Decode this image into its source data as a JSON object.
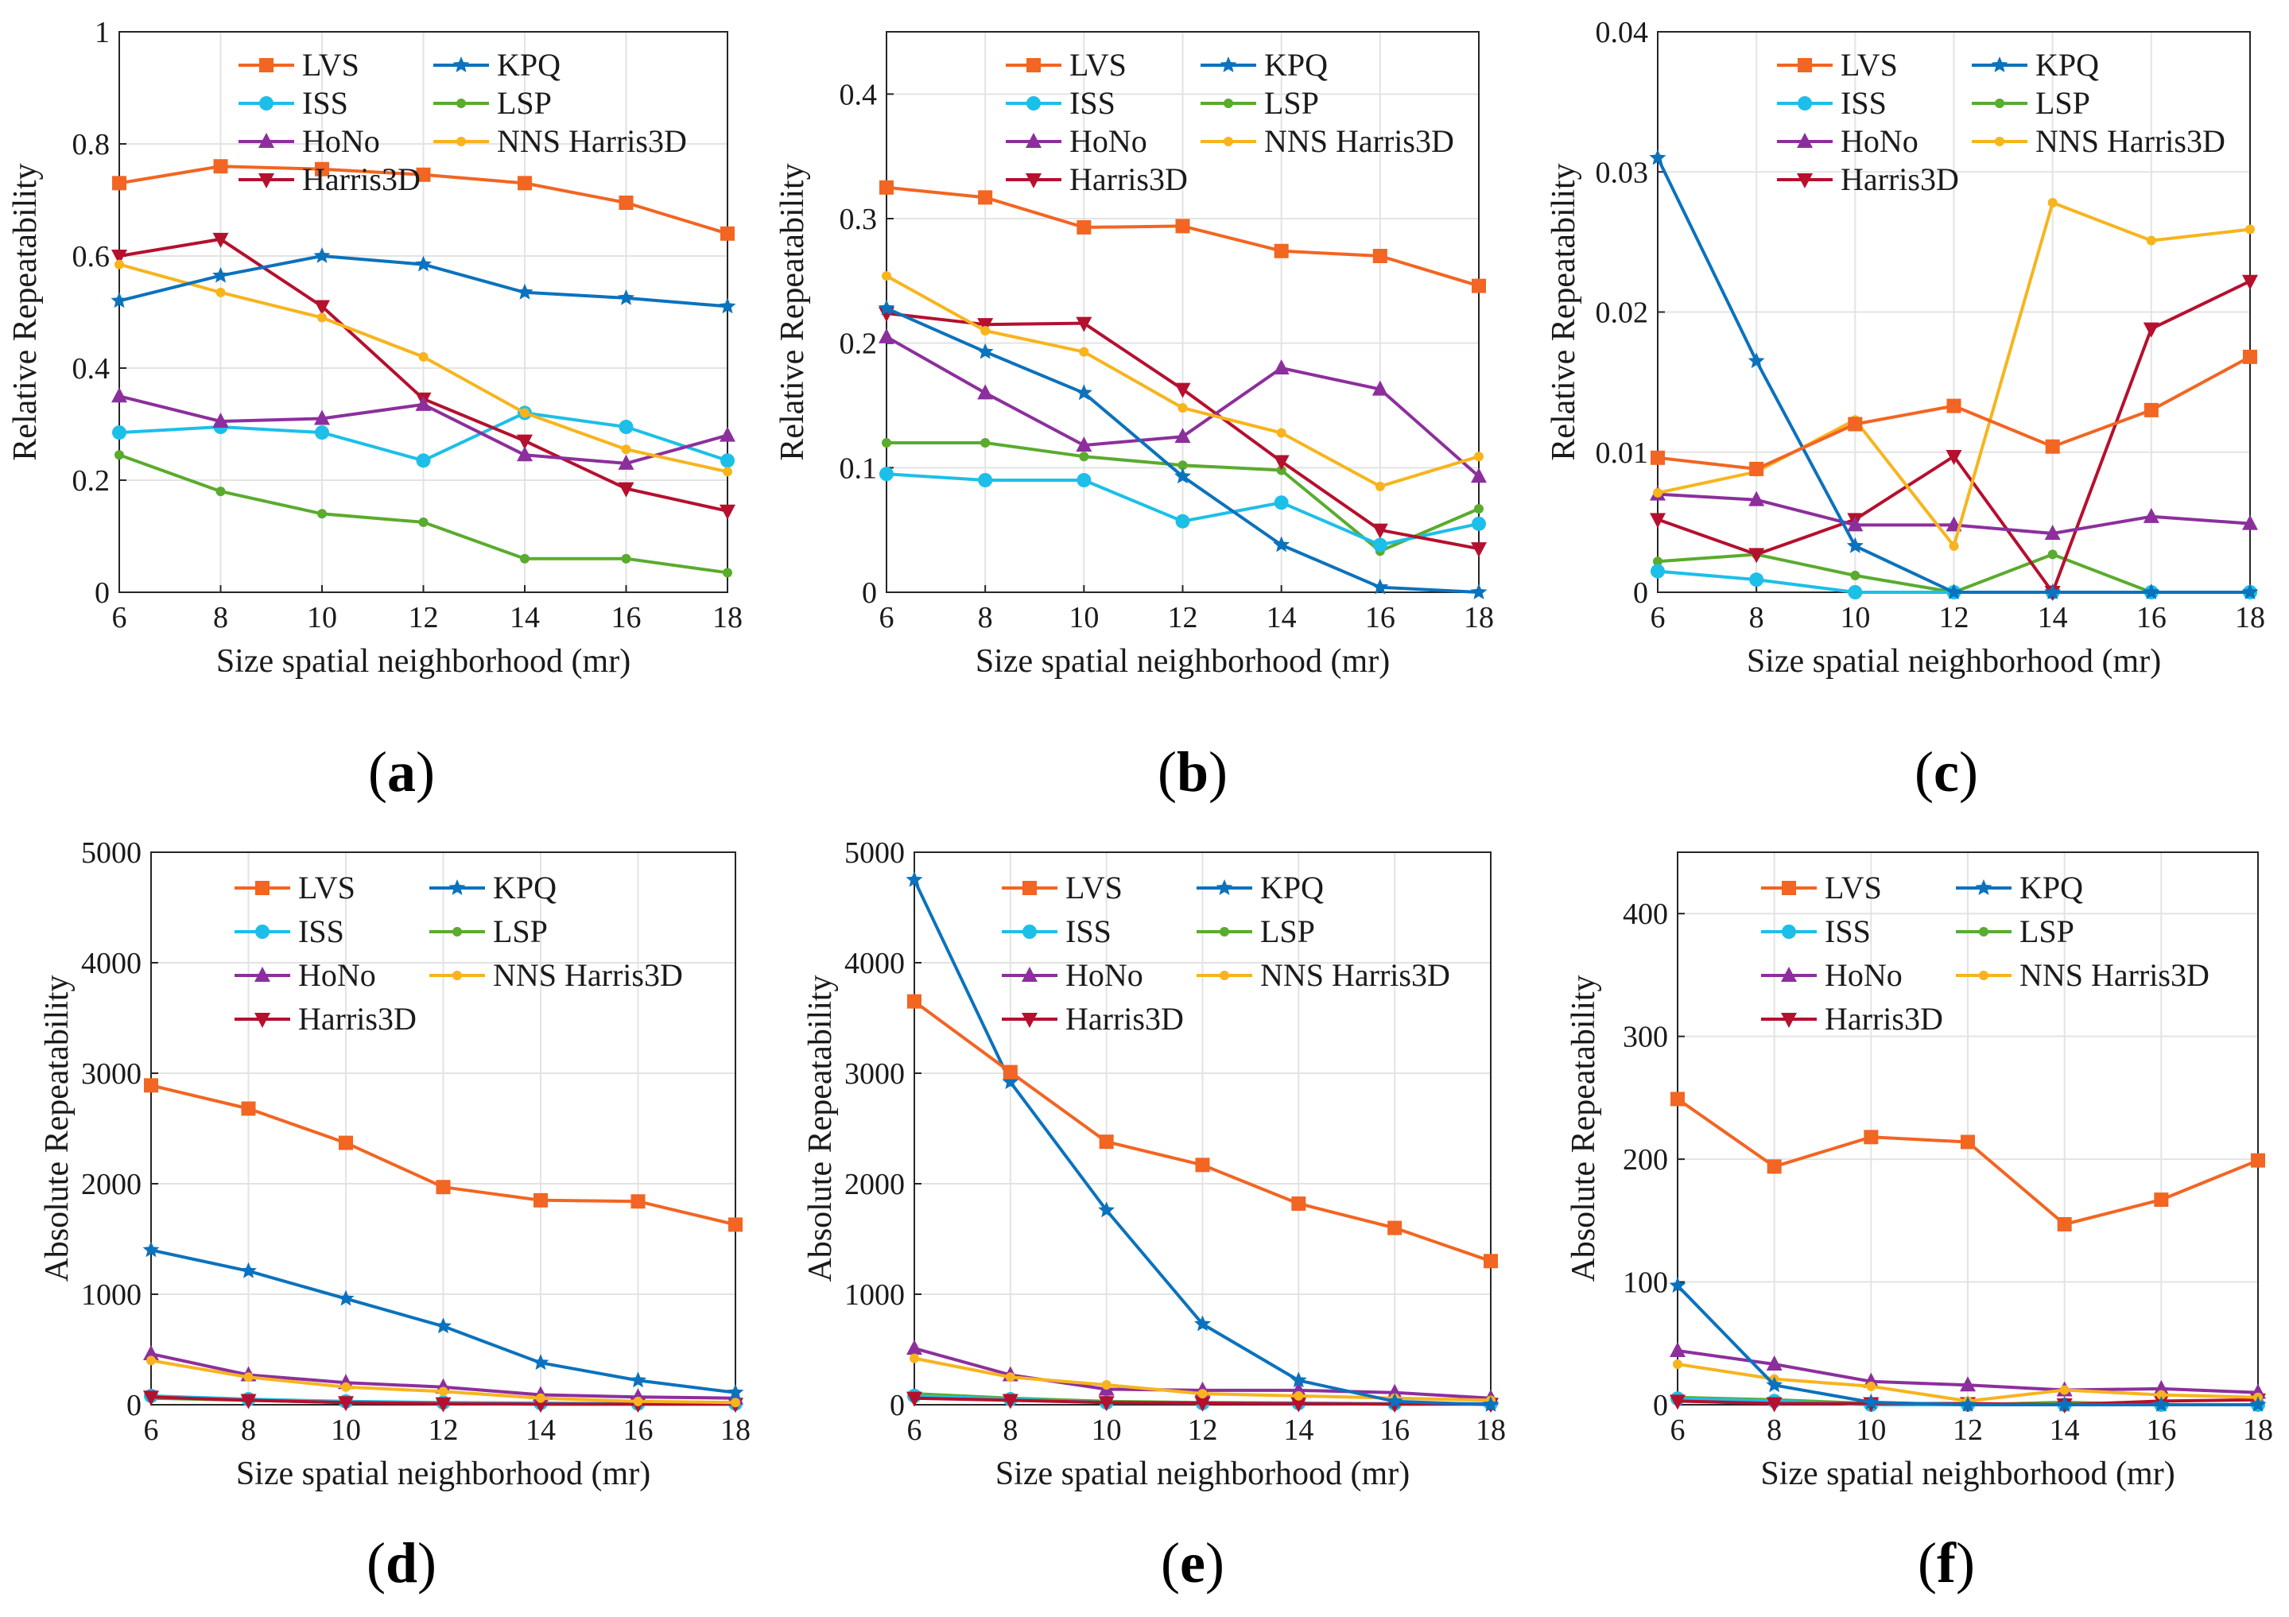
{
  "colors": {
    "LVS": "#f26522",
    "KPQ": "#0b72bd",
    "ISS": "#1cbfe8",
    "LSP": "#5aab2e",
    "HoNo": "#8c2f9c",
    "NNS Harris3D": "#f7b41d",
    "Harris3D": "#b5102e"
  },
  "chart_data": [
    {
      "type": "line",
      "panel": "a",
      "xlabel": "Size spatial neighborhood (mr)",
      "ylabel": "Relative Repeatability",
      "x": [
        6,
        8,
        10,
        12,
        14,
        16,
        18
      ],
      "xticks": [
        "6",
        "8",
        "10",
        "12",
        "14",
        "16",
        "18"
      ],
      "ylim": [
        0,
        1
      ],
      "yticks": [
        "0",
        "0.2",
        "0.4",
        "0.6",
        "0.8",
        "1"
      ],
      "series": [
        {
          "name": "LVS",
          "marker": "square",
          "values": [
            0.73,
            0.76,
            0.755,
            0.745,
            0.73,
            0.695,
            0.64
          ]
        },
        {
          "name": "ISS",
          "marker": "circle",
          "values": [
            0.285,
            0.295,
            0.285,
            0.235,
            0.32,
            0.295,
            0.235
          ]
        },
        {
          "name": "HoNo",
          "marker": "triangle-up",
          "values": [
            0.35,
            0.305,
            0.31,
            0.335,
            0.245,
            0.23,
            0.28
          ]
        },
        {
          "name": "Harris3D",
          "marker": "triangle-down",
          "values": [
            0.6,
            0.63,
            0.51,
            0.345,
            0.27,
            0.185,
            0.145
          ]
        },
        {
          "name": "KPQ",
          "marker": "star",
          "values": [
            0.52,
            0.565,
            0.6,
            0.585,
            0.535,
            0.525,
            0.51
          ]
        },
        {
          "name": "LSP",
          "marker": "dot",
          "values": [
            0.245,
            0.18,
            0.14,
            0.125,
            0.06,
            0.06,
            0.035
          ]
        },
        {
          "name": "NNS Harris3D",
          "marker": "dot",
          "values": [
            0.585,
            0.535,
            0.49,
            0.42,
            0.32,
            0.255,
            0.215
          ]
        }
      ]
    },
    {
      "type": "line",
      "panel": "b",
      "xlabel": "Size spatial neighborhood (mr)",
      "ylabel": "Relative Repeatability",
      "x": [
        6,
        8,
        10,
        12,
        14,
        16,
        18
      ],
      "xticks": [
        "6",
        "8",
        "10",
        "12",
        "14",
        "16",
        "18"
      ],
      "ylim": [
        0,
        0.45
      ],
      "yticks": [
        "0",
        "0.1",
        "0.2",
        "0.3",
        "0.4"
      ],
      "series": [
        {
          "name": "LVS",
          "marker": "square",
          "values": [
            0.325,
            0.317,
            0.293,
            0.294,
            0.274,
            0.27,
            0.246
          ]
        },
        {
          "name": "ISS",
          "marker": "circle",
          "values": [
            0.095,
            0.09,
            0.09,
            0.057,
            0.072,
            0.038,
            0.055
          ]
        },
        {
          "name": "HoNo",
          "marker": "triangle-up",
          "values": [
            0.205,
            0.16,
            0.118,
            0.125,
            0.18,
            0.163,
            0.093
          ]
        },
        {
          "name": "Harris3D",
          "marker": "triangle-down",
          "values": [
            0.224,
            0.215,
            0.216,
            0.163,
            0.105,
            0.05,
            0.035
          ]
        },
        {
          "name": "KPQ",
          "marker": "star",
          "values": [
            0.228,
            0.193,
            0.16,
            0.093,
            0.038,
            0.004,
            0.0
          ]
        },
        {
          "name": "LSP",
          "marker": "dot",
          "values": [
            0.12,
            0.12,
            0.109,
            0.102,
            0.098,
            0.033,
            0.067
          ]
        },
        {
          "name": "NNS Harris3D",
          "marker": "dot",
          "values": [
            0.254,
            0.21,
            0.193,
            0.148,
            0.128,
            0.085,
            0.109
          ]
        }
      ]
    },
    {
      "type": "line",
      "panel": "c",
      "xlabel": "Size spatial neighborhood (mr)",
      "ylabel": "Relative Repeatability",
      "x": [
        6,
        8,
        10,
        12,
        14,
        16,
        18
      ],
      "xticks": [
        "6",
        "8",
        "10",
        "12",
        "14",
        "16",
        "18"
      ],
      "ylim": [
        0,
        0.04
      ],
      "yticks": [
        "0",
        "0.01",
        "0.02",
        "0.03",
        "0.04"
      ],
      "series": [
        {
          "name": "LVS",
          "marker": "square",
          "values": [
            0.0096,
            0.0088,
            0.012,
            0.0133,
            0.0104,
            0.013,
            0.0168
          ]
        },
        {
          "name": "ISS",
          "marker": "circle",
          "values": [
            0.0015,
            0.0009,
            0.0,
            0.0,
            0.0,
            0.0,
            0.0
          ]
        },
        {
          "name": "HoNo",
          "marker": "triangle-up",
          "values": [
            0.007,
            0.0066,
            0.0048,
            0.0048,
            0.0042,
            0.0054,
            0.0049
          ]
        },
        {
          "name": "Harris3D",
          "marker": "triangle-down",
          "values": [
            0.0052,
            0.0027,
            0.0052,
            0.0097,
            0.0,
            0.0188,
            0.0222
          ]
        },
        {
          "name": "KPQ",
          "marker": "star",
          "values": [
            0.031,
            0.0165,
            0.0033,
            0.0,
            0.0,
            0.0,
            0.0
          ]
        },
        {
          "name": "LSP",
          "marker": "dot",
          "values": [
            0.0022,
            0.0027,
            0.0012,
            0.0,
            0.0027,
            0.0,
            0.0
          ]
        },
        {
          "name": "NNS Harris3D",
          "marker": "dot",
          "values": [
            0.0071,
            0.0086,
            0.0123,
            0.0033,
            0.0278,
            0.0251,
            0.0259
          ]
        }
      ]
    },
    {
      "type": "line",
      "panel": "d",
      "xlabel": "Size spatial neighborhood (mr)",
      "ylabel": "Absolute Repeatability",
      "x": [
        6,
        8,
        10,
        12,
        14,
        16,
        18
      ],
      "xticks": [
        "6",
        "8",
        "10",
        "12",
        "14",
        "16",
        "18"
      ],
      "ylim": [
        0,
        5000
      ],
      "yticks": [
        "0",
        "1000",
        "2000",
        "3000",
        "4000",
        "5000"
      ],
      "series": [
        {
          "name": "LVS",
          "marker": "square",
          "values": [
            2890,
            2680,
            2370,
            1970,
            1850,
            1840,
            1630
          ]
        },
        {
          "name": "ISS",
          "marker": "circle",
          "values": [
            80,
            50,
            30,
            20,
            15,
            10,
            10
          ]
        },
        {
          "name": "HoNo",
          "marker": "triangle-up",
          "values": [
            460,
            270,
            200,
            160,
            90,
            70,
            60
          ]
        },
        {
          "name": "Harris3D",
          "marker": "triangle-down",
          "values": [
            70,
            40,
            20,
            10,
            5,
            5,
            5
          ]
        },
        {
          "name": "KPQ",
          "marker": "star",
          "values": [
            1400,
            1210,
            960,
            710,
            380,
            220,
            110
          ]
        },
        {
          "name": "LSP",
          "marker": "dot",
          "values": [
            60,
            40,
            20,
            15,
            5,
            5,
            5
          ]
        },
        {
          "name": "NNS Harris3D",
          "marker": "dot",
          "values": [
            400,
            250,
            160,
            120,
            60,
            30,
            20
          ]
        }
      ]
    },
    {
      "type": "line",
      "panel": "e",
      "xlabel": "Size spatial neighborhood (mr)",
      "ylabel": "Absolute Repeatability",
      "x": [
        6,
        8,
        10,
        12,
        14,
        16,
        18
      ],
      "xticks": [
        "6",
        "8",
        "10",
        "12",
        "14",
        "16",
        "18"
      ],
      "ylim": [
        0,
        5000
      ],
      "yticks": [
        "0",
        "1000",
        "2000",
        "3000",
        "4000",
        "5000"
      ],
      "series": [
        {
          "name": "LVS",
          "marker": "square",
          "values": [
            3650,
            3010,
            2380,
            2170,
            1820,
            1600,
            1300
          ]
        },
        {
          "name": "ISS",
          "marker": "circle",
          "values": [
            80,
            50,
            20,
            15,
            15,
            10,
            10
          ]
        },
        {
          "name": "HoNo",
          "marker": "triangle-up",
          "values": [
            510,
            270,
            140,
            130,
            130,
            110,
            60
          ]
        },
        {
          "name": "Harris3D",
          "marker": "triangle-down",
          "values": [
            60,
            40,
            20,
            15,
            10,
            5,
            5
          ]
        },
        {
          "name": "KPQ",
          "marker": "star",
          "values": [
            4750,
            2920,
            1760,
            730,
            220,
            30,
            0
          ]
        },
        {
          "name": "LSP",
          "marker": "dot",
          "values": [
            100,
            60,
            30,
            20,
            15,
            5,
            10
          ]
        },
        {
          "name": "NNS Harris3D",
          "marker": "dot",
          "values": [
            420,
            250,
            180,
            100,
            80,
            60,
            40
          ]
        }
      ]
    },
    {
      "type": "line",
      "panel": "f",
      "xlabel": "Size spatial neighborhood (mr)",
      "ylabel": "Absolute Repeatability",
      "x": [
        6,
        8,
        10,
        12,
        14,
        16,
        18
      ],
      "xticks": [
        "6",
        "8",
        "10",
        "12",
        "14",
        "16",
        "18"
      ],
      "ylim": [
        0,
        450
      ],
      "yticks": [
        "0",
        "100",
        "200",
        "300",
        "400"
      ],
      "series": [
        {
          "name": "LVS",
          "marker": "square",
          "values": [
            249,
            194,
            218,
            214,
            147,
            167,
            199
          ]
        },
        {
          "name": "ISS",
          "marker": "circle",
          "values": [
            5,
            3,
            0,
            0,
            0,
            0,
            0
          ]
        },
        {
          "name": "HoNo",
          "marker": "triangle-up",
          "values": [
            44,
            33,
            19,
            16,
            12,
            13,
            10
          ]
        },
        {
          "name": "Harris3D",
          "marker": "triangle-down",
          "values": [
            3,
            1,
            1,
            1,
            0,
            3,
            4
          ]
        },
        {
          "name": "KPQ",
          "marker": "star",
          "values": [
            97,
            16,
            2,
            0,
            0,
            0,
            0
          ]
        },
        {
          "name": "LSP",
          "marker": "dot",
          "values": [
            6,
            4,
            1,
            0,
            2,
            0,
            0
          ]
        },
        {
          "name": "NNS Harris3D",
          "marker": "dot",
          "values": [
            33,
            21,
            15,
            3,
            12,
            8,
            6
          ]
        }
      ]
    }
  ]
}
